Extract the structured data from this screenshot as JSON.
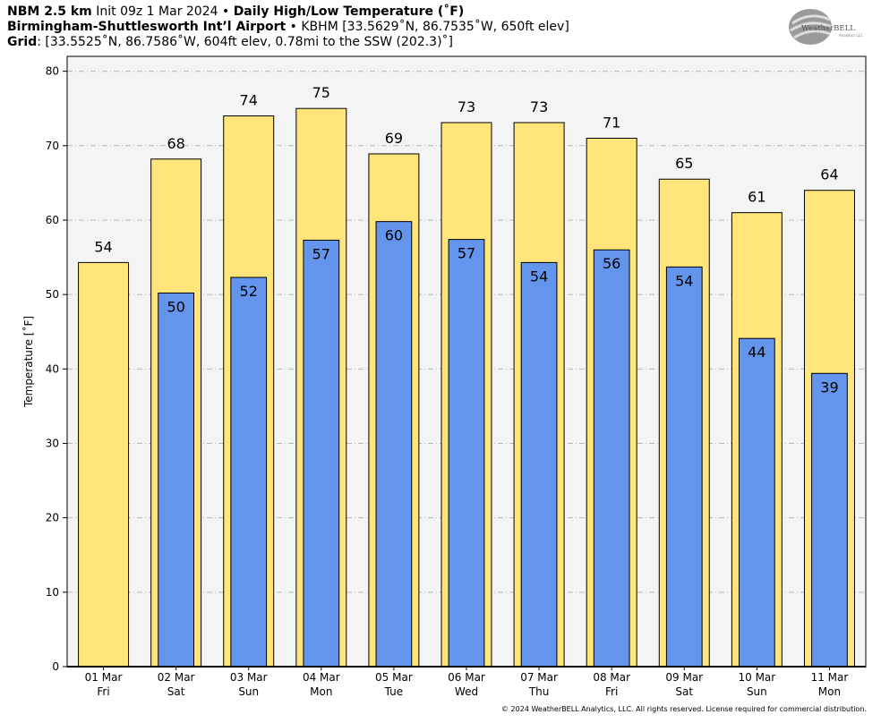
{
  "header": {
    "line1_bold_a": "NBM 2.5 km",
    "line1_normal_a": " Init 09z 1 Mar 2024 • ",
    "line1_bold_b": "Daily High/Low Temperature (˚F)",
    "line2_bold": "Birmingham-Shuttlesworth Int’l Airport",
    "line2_normal": " • KBHM [33.5629˚N, 86.7535˚W, 650ft elev]",
    "line3_bold": "Grid",
    "line3_normal": ": [33.5525˚N, 86.7586˚W, 604ft elev, 0.78mi to the SSW (202.3)˚]"
  },
  "logo": {
    "text": "WeatherBELL",
    "sub": "Analytics LLC"
  },
  "footer": "© 2024 WeatherBELL Analytics, LLC. All rights reserved. License required for commercial distribution.",
  "colors": {
    "high": "#FFE57A",
    "low": "#6495ED",
    "plot_bg": "#F4F4F4"
  },
  "chart_data": {
    "type": "bar",
    "title": "Daily High/Low Temperature (˚F)",
    "xlabel": "",
    "ylabel": "Temperature [˚F]",
    "ylim": [
      0,
      82
    ],
    "yticks": [
      0,
      10,
      20,
      30,
      40,
      50,
      60,
      70,
      80
    ],
    "grid": true,
    "categories": [
      {
        "date": "01 Mar",
        "day": "Fri"
      },
      {
        "date": "02 Mar",
        "day": "Sat"
      },
      {
        "date": "03 Mar",
        "day": "Sun"
      },
      {
        "date": "04 Mar",
        "day": "Mon"
      },
      {
        "date": "05 Mar",
        "day": "Tue"
      },
      {
        "date": "06 Mar",
        "day": "Wed"
      },
      {
        "date": "07 Mar",
        "day": "Thu"
      },
      {
        "date": "08 Mar",
        "day": "Fri"
      },
      {
        "date": "09 Mar",
        "day": "Sat"
      },
      {
        "date": "10 Mar",
        "day": "Sun"
      },
      {
        "date": "11 Mar",
        "day": "Mon"
      }
    ],
    "series": [
      {
        "key": "high",
        "values": [
          54.3,
          68.2,
          74,
          75,
          68.9,
          73.1,
          73.1,
          71,
          65.5,
          61,
          64
        ]
      },
      {
        "key": "low",
        "values": [
          null,
          50.2,
          52.3,
          57.3,
          59.8,
          57.4,
          54.3,
          56,
          53.7,
          44.1,
          39.4
        ]
      }
    ],
    "labels": {
      "high": [
        "54",
        "68",
        "74",
        "75",
        "69",
        "73",
        "73",
        "71",
        "65",
        "61",
        "64"
      ],
      "low": [
        null,
        "50",
        "52",
        "57",
        "60",
        "57",
        "54",
        "56",
        "54",
        "44",
        "39"
      ]
    }
  }
}
